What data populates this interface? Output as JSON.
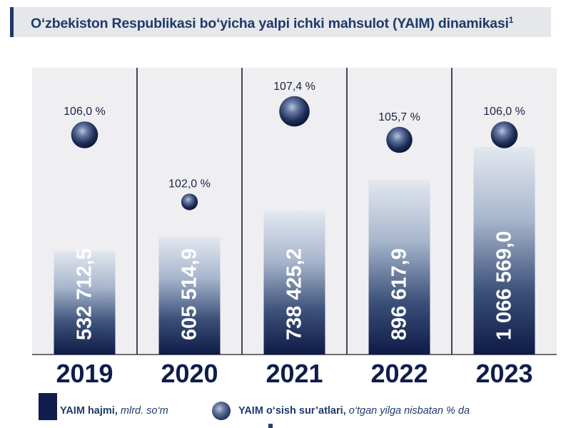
{
  "title": {
    "main": "O‘zbekiston Respublikasi bo‘yicha yalpi ichki mahsulot (YAIM) dinamikasi",
    "footnote_mark": "1"
  },
  "chart_data": {
    "type": "bar",
    "categories": [
      "2019",
      "2020",
      "2021",
      "2022",
      "2023"
    ],
    "series": [
      {
        "name": "YAIM hajmi, mlrd. so‘m",
        "values": [
          532712.5,
          605514.9,
          738425.2,
          896617.9,
          1066569.0
        ],
        "labels": [
          "532 712,5",
          "605 514,9",
          "738 425,2",
          "896 617,9",
          "1 066 569,0"
        ]
      },
      {
        "name": "YAIM o‘sish sur’atlari, o‘tgan yilga nisbatan % da",
        "values": [
          106.0,
          102.0,
          107.4,
          105.7,
          106.0
        ],
        "labels": [
          "106,0 %",
          "102,0 %",
          "107,4 %",
          "105,7 %",
          "106,0 %"
        ]
      }
    ]
  },
  "legend": {
    "volume_bold": "YAIM hajmi,",
    "volume_italic": "mlrd. so‘m",
    "growth_bold": "YAIM o‘sish sur’atlari,",
    "growth_italic": "o‘tgan yilga nisbatan % da"
  },
  "colors": {
    "title": "#1e3a6a",
    "bar_top": "#e0e6ef",
    "bar_bottom": "#101c4a"
  }
}
